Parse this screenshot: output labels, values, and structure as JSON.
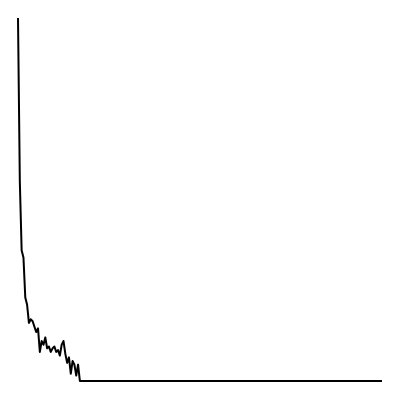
{
  "chart_data": {
    "type": "line",
    "title": "",
    "xlabel": "",
    "ylabel": "",
    "axes_visible": false,
    "grid": false,
    "legend": "none",
    "xlim": [
      0,
      100
    ],
    "ylim": [
      0,
      100
    ],
    "series": [
      {
        "color": "#000000",
        "x": [
          0.0,
          0.5,
          1.0,
          1.5,
          2.0,
          2.5,
          3.0,
          3.5,
          4.0,
          4.5,
          5.0,
          5.5,
          6.0,
          6.5,
          7.0,
          7.5,
          8.0,
          8.5,
          9.0,
          9.5,
          10.0,
          10.5,
          11.0,
          11.5,
          12.0,
          12.5,
          13.0,
          13.5,
          14.0,
          14.5,
          15.0,
          15.5,
          16.0,
          16.5,
          17.0,
          17.5,
          18.0,
          18.5,
          19.0,
          19.5,
          20.0,
          100.0
        ],
        "y": [
          100.0,
          55.0,
          36.0,
          34.0,
          23.0,
          21.0,
          16.0,
          17.0,
          16.5,
          15.0,
          13.5,
          14.5,
          8.0,
          11.0,
          10.0,
          12.0,
          9.0,
          9.5,
          8.0,
          9.0,
          9.5,
          8.0,
          8.5,
          7.0,
          10.0,
          11.0,
          7.5,
          5.0,
          6.5,
          2.0,
          5.5,
          4.5,
          1.5,
          4.5,
          0.0,
          0.0,
          0.0,
          0.0,
          0.0,
          0.0,
          0.0,
          0.0
        ]
      }
    ]
  }
}
